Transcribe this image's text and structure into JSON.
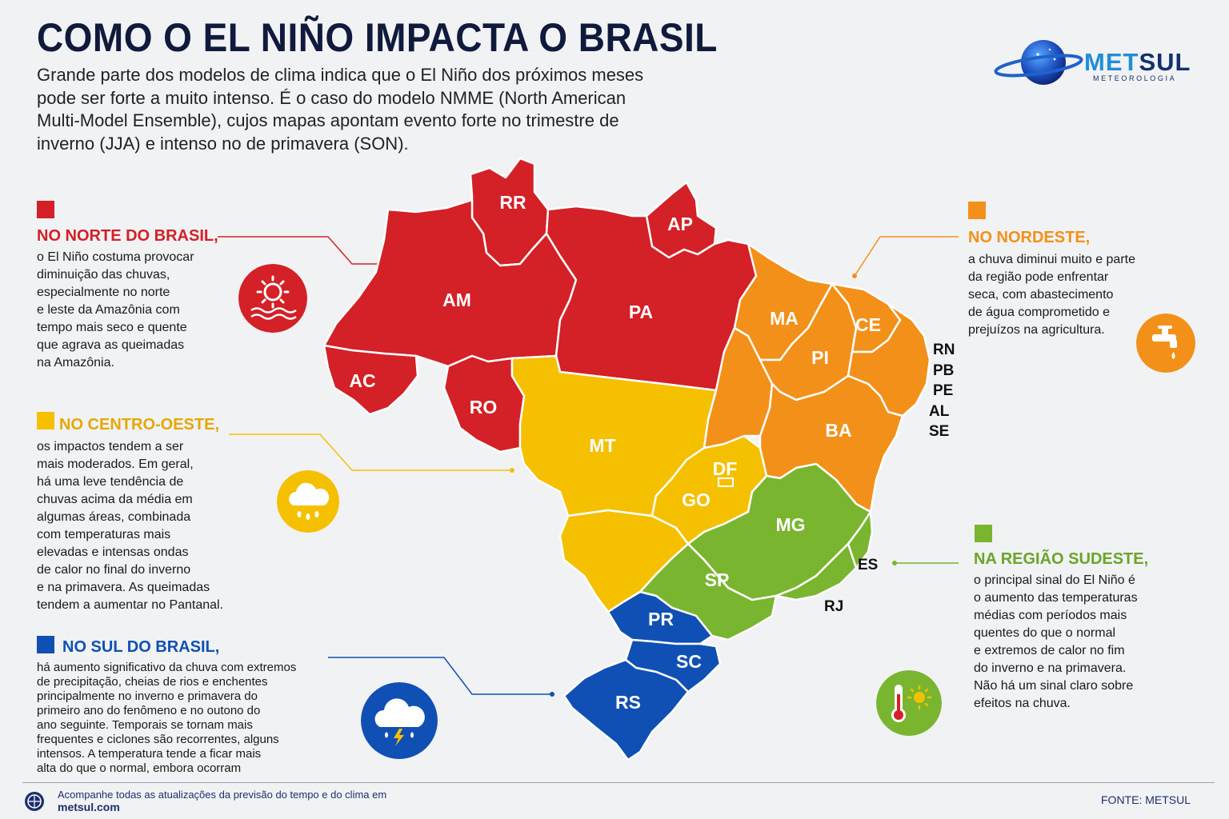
{
  "title": "COMO O EL NIÑO IMPACTA O BRASIL",
  "intro": "Grande parte dos modelos de clima indica que o El Niño dos próximos meses pode ser forte a muito intenso. É o caso do modelo NMME (North American Multi-Model Ensemble), cujos mapas apontam evento forte no trimestre de inverno (JJA) e intenso no de primavera (SON).",
  "logo": {
    "name_part1": "MET",
    "name_part2": "SUL",
    "subtitle": "METEOROLOGIA"
  },
  "colors": {
    "norte": "#d42027",
    "centro_oeste": "#f5c000",
    "nordeste": "#f39019",
    "sudeste": "#7ab52f",
    "sul": "#1050b4",
    "title": "#101a3c"
  },
  "regions": {
    "norte": {
      "heading": "NO  NORTE DO BRASIL,",
      "body": "o El Niño costuma provocar\ndiminuição das chuvas,\nespecialmente no norte\ne leste da Amazônia com\ntempo mais seco e quente\nque agrava as queimadas\nna Amazônia.",
      "icon": "sun-drought-icon"
    },
    "centro_oeste": {
      "heading": "NO CENTRO-OESTE,",
      "body": "os impactos tendem a ser\nmais moderados.  Em geral,\nhá uma leve tendência de\nchuvas acima da média em\nalgumas áreas, combinada\ncom temperaturas mais\nelevadas e intensas ondas\nde calor no final do inverno\ne na primavera. As queimadas\ntendem a aumentar no Pantanal.",
      "icon": "rain-cloud-icon"
    },
    "sul": {
      "heading": "NO SUL DO BRASIL,",
      "body": "há aumento significativo da chuva com extremos\nde precipitação, cheias de rios e enchentes\nprincipalmente no inverno e primavera do\nprimeiro ano do fenômeno e no outono do\nano seguinte. Temporais se tornam mais\nfrequentes e ciclones são recorrentes, alguns\nintensos. A temperatura tende a ficar mais\nalta do que o normal, embora ocorram",
      "icon": "storm-cloud-icon"
    },
    "nordeste": {
      "heading": "NO NORDESTE,",
      "body": "a chuva diminui muito e parte\nda região pode enfrentar\nseca, com abastecimento\nde água comprometido e\nprejuízos na agricultura.",
      "icon": "water-tap-icon"
    },
    "sudeste": {
      "heading": "NA  REGIÃO SUDESTE,",
      "body": "o principal sinal do El Niño é\no aumento das temperaturas\nmédias com períodos mais\nquentes do que o normal\ne extremos de calor no fim\ndo inverno e na primavera.\nNão há um sinal claro sobre\nefeitos na chuva.",
      "icon": "thermometer-sun-icon"
    }
  },
  "states": {
    "RR": "RR",
    "AP": "AP",
    "AM": "AM",
    "PA": "PA",
    "AC": "AC",
    "RO": "RO",
    "MT": "MT",
    "GO": "GO",
    "DF": "DF",
    "MA": "MA",
    "PI": "PI",
    "CE": "CE",
    "BA": "BA",
    "RN": "RN",
    "PB": "PB",
    "PE": "PE",
    "AL": "AL",
    "SE": "SE",
    "MG": "MG",
    "SP": "SP",
    "ES": "ES",
    "RJ": "RJ",
    "PR": "PR",
    "SC": "SC",
    "RS": "RS"
  },
  "footer": {
    "text": "Acompanhe todas as atualizações da previsão do tempo e do clima em",
    "link": "metsul.com",
    "source": "FONTE: METSUL"
  }
}
